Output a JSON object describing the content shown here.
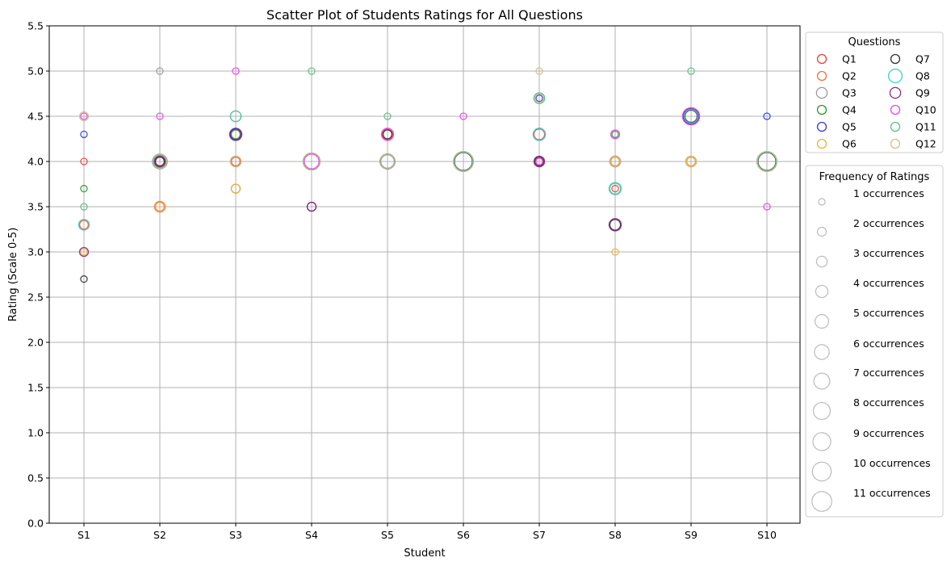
{
  "chart_data": {
    "type": "scatter",
    "title": "Scatter Plot of Students Ratings for All Questions",
    "xlabel": "Student",
    "ylabel": "Rating (Scale 0-5)",
    "ylim": [
      0,
      5.5
    ],
    "yticks": [
      "0.0",
      "0.5",
      "1.0",
      "1.5",
      "2.0",
      "2.5",
      "3.0",
      "3.5",
      "4.0",
      "4.5",
      "5.0",
      "5.5"
    ],
    "categories": [
      "S1",
      "S2",
      "S3",
      "S4",
      "S5",
      "S6",
      "S7",
      "S8",
      "S9",
      "S10"
    ],
    "grid": true,
    "legend_questions": {
      "title": "Questions",
      "placement": "outside-upper-right",
      "columns": 2
    },
    "legend_frequency": {
      "title": "Frequency of Ratings",
      "placement": "outside-right",
      "entries": [
        "1 occurrences",
        "2 occurrences",
        "3 occurrences",
        "4 occurrences",
        "5 occurrences",
        "6 occurrences",
        "7 occurrences",
        "8 occurrences",
        "9 occurrences",
        "10 occurrences",
        "11 occurrences"
      ],
      "color": "#bbbbbb"
    },
    "series": [
      {
        "name": "Q1",
        "color": "#e8413c",
        "points": [
          [
            1,
            4.0,
            1
          ],
          [
            1,
            3.3,
            2
          ],
          [
            2,
            4.0,
            3
          ],
          [
            2,
            3.5,
            2
          ],
          [
            3,
            4.3,
            3
          ],
          [
            3,
            4.0,
            2
          ],
          [
            4,
            4.0,
            7
          ],
          [
            5,
            4.0,
            6
          ],
          [
            5,
            4.3,
            3
          ],
          [
            6,
            4.0,
            10
          ],
          [
            7,
            4.3,
            3
          ],
          [
            7,
            4.0,
            2
          ],
          [
            8,
            3.7,
            1
          ],
          [
            8,
            4.0,
            2
          ],
          [
            9,
            4.5,
            6
          ],
          [
            9,
            4.0,
            2
          ],
          [
            10,
            4.0,
            10
          ]
        ]
      },
      {
        "name": "Q2",
        "color": "#f5703a",
        "points": [
          [
            1,
            3.3,
            2
          ],
          [
            2,
            3.5,
            3
          ],
          [
            2,
            4.0,
            2
          ],
          [
            3,
            4.0,
            2
          ],
          [
            4,
            4.0,
            7
          ],
          [
            5,
            4.0,
            6
          ],
          [
            6,
            4.0,
            10
          ],
          [
            7,
            4.0,
            2
          ],
          [
            8,
            4.0,
            2
          ],
          [
            9,
            4.0,
            3
          ],
          [
            10,
            4.0,
            10
          ]
        ]
      },
      {
        "name": "Q3",
        "color": "#999999",
        "points": [
          [
            2,
            5.0,
            1
          ],
          [
            2,
            4.0,
            4
          ],
          [
            3,
            4.0,
            3
          ],
          [
            3,
            3.7,
            2
          ],
          [
            4,
            4.0,
            8
          ],
          [
            5,
            4.3,
            2
          ],
          [
            5,
            4.0,
            5
          ],
          [
            6,
            4.0,
            10
          ],
          [
            7,
            4.3,
            4
          ],
          [
            8,
            4.0,
            3
          ],
          [
            8,
            3.3,
            3
          ],
          [
            9,
            4.0,
            2
          ],
          [
            10,
            4.0,
            10
          ]
        ]
      },
      {
        "name": "Q4",
        "color": "#2a9a2a",
        "points": [
          [
            1,
            3.7,
            1
          ],
          [
            2,
            4.0,
            5
          ],
          [
            3,
            4.3,
            2
          ],
          [
            4,
            4.0,
            8
          ],
          [
            5,
            4.0,
            6
          ],
          [
            6,
            4.0,
            11
          ],
          [
            7,
            4.0,
            2
          ],
          [
            8,
            4.3,
            1
          ],
          [
            9,
            4.5,
            5
          ],
          [
            10,
            4.0,
            11
          ]
        ]
      },
      {
        "name": "Q5",
        "color": "#3a3ae0",
        "points": [
          [
            1,
            4.3,
            1
          ],
          [
            2,
            4.0,
            5
          ],
          [
            3,
            4.3,
            4
          ],
          [
            4,
            4.0,
            7
          ],
          [
            5,
            4.0,
            6
          ],
          [
            6,
            4.0,
            10
          ],
          [
            7,
            4.7,
            1
          ],
          [
            8,
            4.0,
            3
          ],
          [
            9,
            4.5,
            7
          ],
          [
            10,
            4.5,
            1
          ],
          [
            10,
            4.0,
            10
          ]
        ]
      },
      {
        "name": "Q6",
        "color": "#f5b032",
        "points": [
          [
            1,
            3.0,
            1
          ],
          [
            2,
            3.5,
            2
          ],
          [
            3,
            3.7,
            2
          ],
          [
            4,
            4.0,
            7
          ],
          [
            5,
            4.0,
            5
          ],
          [
            6,
            4.0,
            10
          ],
          [
            7,
            4.0,
            2
          ],
          [
            8,
            3.0,
            1
          ],
          [
            8,
            4.0,
            2
          ],
          [
            9,
            4.0,
            2
          ],
          [
            10,
            4.0,
            10
          ]
        ]
      },
      {
        "name": "Q7",
        "color": "#333333",
        "points": [
          [
            1,
            2.7,
            1
          ],
          [
            2,
            4.0,
            2
          ],
          [
            3,
            4.3,
            3
          ],
          [
            4,
            3.5,
            2
          ],
          [
            5,
            4.3,
            2
          ],
          [
            6,
            4.0,
            9
          ],
          [
            7,
            4.0,
            2
          ],
          [
            8,
            3.3,
            3
          ],
          [
            9,
            4.5,
            4
          ],
          [
            10,
            4.0,
            9
          ]
        ]
      },
      {
        "name": "Q8",
        "color": "#3ccfcf",
        "points": [
          [
            1,
            3.3,
            3
          ],
          [
            2,
            4.0,
            6
          ],
          [
            3,
            4.5,
            3
          ],
          [
            4,
            4.0,
            7
          ],
          [
            5,
            4.0,
            5
          ],
          [
            6,
            4.0,
            10
          ],
          [
            7,
            4.7,
            3
          ],
          [
            7,
            4.3,
            4
          ],
          [
            8,
            3.7,
            4
          ],
          [
            9,
            4.5,
            5
          ],
          [
            10,
            4.0,
            10
          ]
        ]
      },
      {
        "name": "Q9",
        "color": "#8a2a8a",
        "points": [
          [
            1,
            3.0,
            2
          ],
          [
            2,
            4.0,
            3
          ],
          [
            3,
            4.3,
            3
          ],
          [
            4,
            3.5,
            2
          ],
          [
            5,
            4.0,
            6
          ],
          [
            6,
            4.0,
            11
          ],
          [
            7,
            4.0,
            3
          ],
          [
            8,
            3.3,
            4
          ],
          [
            9,
            4.5,
            8
          ],
          [
            10,
            4.0,
            11
          ]
        ]
      },
      {
        "name": "Q10",
        "color": "#ee44ee",
        "points": [
          [
            1,
            4.5,
            1
          ],
          [
            2,
            4.5,
            1
          ],
          [
            3,
            5.0,
            1
          ],
          [
            4,
            4.0,
            6
          ],
          [
            5,
            4.3,
            4
          ],
          [
            6,
            4.5,
            1
          ],
          [
            7,
            4.0,
            1
          ],
          [
            8,
            4.3,
            2
          ],
          [
            9,
            4.5,
            8
          ],
          [
            10,
            3.5,
            1
          ]
        ]
      },
      {
        "name": "Q11",
        "color": "#5abf8a",
        "points": [
          [
            1,
            3.5,
            1
          ],
          [
            2,
            4.0,
            6
          ],
          [
            3,
            4.5,
            3
          ],
          [
            4,
            5.0,
            1
          ],
          [
            5,
            4.5,
            1
          ],
          [
            6,
            4.0,
            11
          ],
          [
            7,
            4.7,
            3
          ],
          [
            8,
            3.7,
            3
          ],
          [
            9,
            5.0,
            1
          ],
          [
            10,
            4.0,
            11
          ]
        ]
      },
      {
        "name": "Q12",
        "color": "#d2c08a",
        "points": [
          [
            1,
            4.5,
            2
          ],
          [
            2,
            4.0,
            5
          ],
          [
            3,
            4.0,
            3
          ],
          [
            4,
            4.0,
            8
          ],
          [
            5,
            4.0,
            6
          ],
          [
            6,
            4.0,
            11
          ],
          [
            7,
            5.0,
            1
          ],
          [
            7,
            4.7,
            2
          ],
          [
            8,
            4.0,
            3
          ],
          [
            9,
            4.0,
            3
          ],
          [
            10,
            4.0,
            11
          ]
        ]
      }
    ]
  }
}
